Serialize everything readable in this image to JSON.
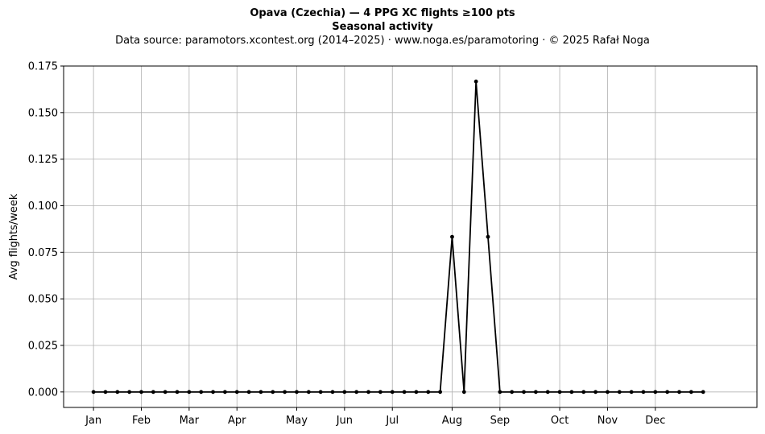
{
  "chart_data": {
    "type": "line",
    "title": "Opava (Czechia)  —  4 PPG XC flights ≥100 pts",
    "subtitle": "Seasonal activity",
    "source_note": "Data source: paramotors.xcontest.org (2014–2025)  ·  www.noga.es/paramotoring  ·  © 2025 Rafał Noga",
    "xlabel": "",
    "ylabel": "Avg flights/week",
    "xlim": [
      -2.5,
      55.5
    ],
    "ylim": [
      -0.0083,
      0.175
    ],
    "yticks": [
      0.0,
      0.025,
      0.05,
      0.075,
      0.1,
      0.125,
      0.15,
      0.175
    ],
    "ytick_labels": [
      "0.000",
      "0.025",
      "0.050",
      "0.075",
      "0.100",
      "0.125",
      "0.150",
      "0.175"
    ],
    "xticks": [
      {
        "label": "Jan",
        "week": 0
      },
      {
        "label": "Feb",
        "week": 4
      },
      {
        "label": "Mar",
        "week": 8
      },
      {
        "label": "Apr",
        "week": 12
      },
      {
        "label": "May",
        "week": 17
      },
      {
        "label": "Jun",
        "week": 21
      },
      {
        "label": "Jul",
        "week": 25
      },
      {
        "label": "Aug",
        "week": 30
      },
      {
        "label": "Sep",
        "week": 34
      },
      {
        "label": "Oct",
        "week": 39
      },
      {
        "label": "Nov",
        "week": 43
      },
      {
        "label": "Dec",
        "week": 47
      }
    ],
    "grid": true,
    "series": [
      {
        "name": "",
        "color": "#000000",
        "x": [
          0,
          1,
          2,
          3,
          4,
          5,
          6,
          7,
          8,
          9,
          10,
          11,
          12,
          13,
          14,
          15,
          16,
          17,
          18,
          19,
          20,
          21,
          22,
          23,
          24,
          25,
          26,
          27,
          28,
          29,
          30,
          31,
          32,
          33,
          34,
          35,
          36,
          37,
          38,
          39,
          40,
          41,
          42,
          43,
          44,
          45,
          46,
          47,
          48,
          49,
          50,
          51
        ],
        "values": [
          0,
          0,
          0,
          0,
          0,
          0,
          0,
          0,
          0,
          0,
          0,
          0,
          0,
          0,
          0,
          0,
          0,
          0,
          0,
          0,
          0,
          0,
          0,
          0,
          0,
          0,
          0,
          0,
          0,
          0,
          0.0833,
          0,
          0.1667,
          0.0833,
          0,
          0,
          0,
          0,
          0,
          0,
          0,
          0,
          0,
          0,
          0,
          0,
          0,
          0,
          0,
          0,
          0,
          0
        ]
      }
    ]
  }
}
